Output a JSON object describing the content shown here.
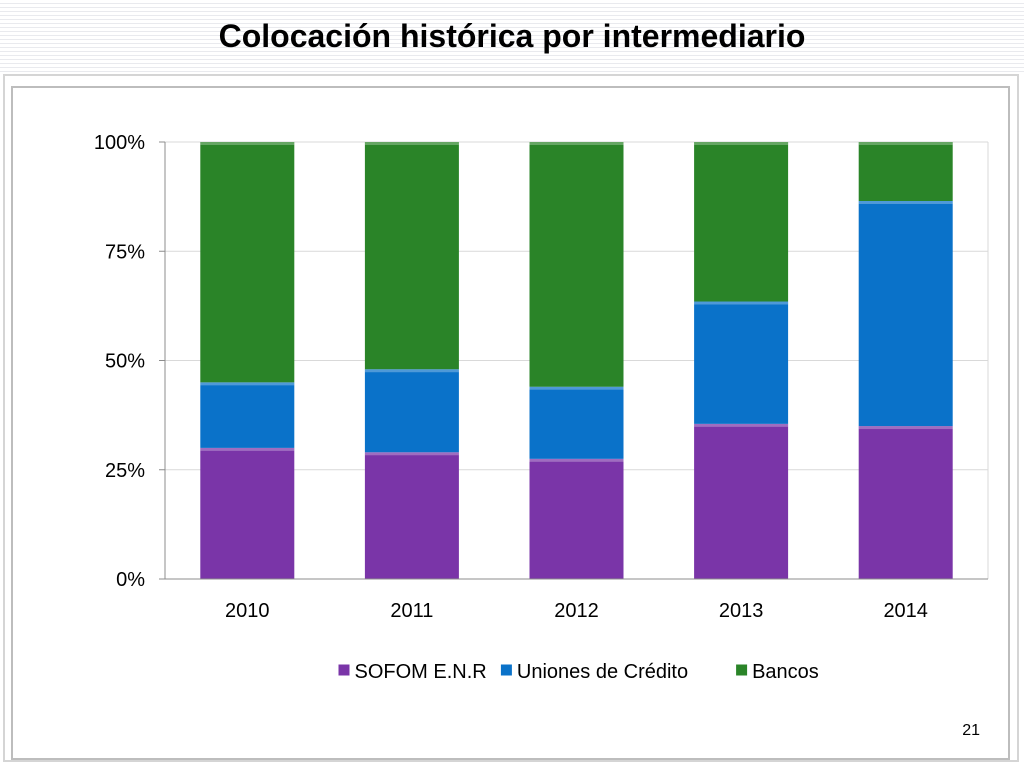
{
  "slide": {
    "title": "Colocación histórica por intermediario",
    "page_number": "21"
  },
  "chart_data": {
    "type": "bar",
    "stacked": true,
    "percent": true,
    "categories": [
      "2010",
      "2011",
      "2012",
      "2013",
      "2014"
    ],
    "series": [
      {
        "name": "SOFOM E.N.R",
        "color": "#7a35a8",
        "values": [
          30,
          29,
          27.5,
          35.5,
          35
        ]
      },
      {
        "name": "Uniones de Crédito",
        "color": "#0a72c9",
        "values": [
          15,
          19,
          16.5,
          28,
          51.5
        ]
      },
      {
        "name": "Bancos",
        "color": "#2a8428",
        "values": [
          55,
          52,
          56,
          36.5,
          13.5
        ]
      }
    ],
    "ylim": [
      0,
      100
    ],
    "yticks": [
      "0%",
      "25%",
      "50%",
      "75%",
      "100%"
    ],
    "grid": true,
    "legend": "bottom"
  }
}
